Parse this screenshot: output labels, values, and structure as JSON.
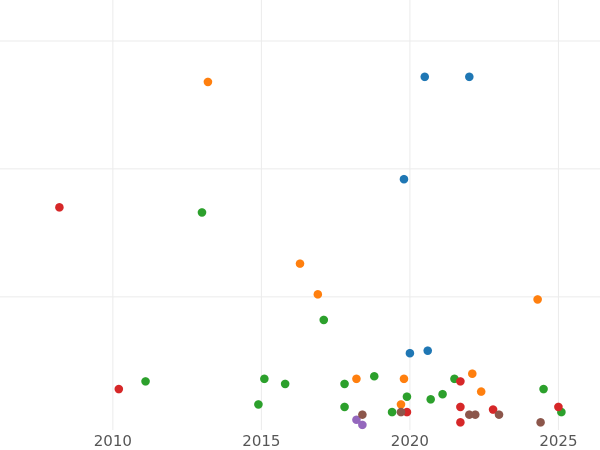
{
  "chart_data": {
    "type": "scatter",
    "title": "",
    "xlabel": "",
    "ylabel": "",
    "xlim": [
      2006.2,
      2026.4
    ],
    "ylim": [
      -0.2,
      16.6
    ],
    "grid": true,
    "legend": "none",
    "x_ticks": [
      2010,
      2015,
      2020,
      2025
    ],
    "x_tick_labels": [
      "2010",
      "2015",
      "2020",
      "2025"
    ],
    "y_grid_values": [
      5,
      10,
      15
    ],
    "series": [
      {
        "color": "#1f77b4",
        "points": [
          {
            "x": 2020.5,
            "y": 13.6
          },
          {
            "x": 2022.0,
            "y": 13.6
          },
          {
            "x": 2019.8,
            "y": 9.6
          },
          {
            "x": 2020.0,
            "y": 2.8
          },
          {
            "x": 2020.6,
            "y": 2.9
          }
        ]
      },
      {
        "color": "#ff7f0e",
        "points": [
          {
            "x": 2013.2,
            "y": 13.4
          },
          {
            "x": 2016.3,
            "y": 6.3
          },
          {
            "x": 2016.9,
            "y": 5.1
          },
          {
            "x": 2024.3,
            "y": 4.9
          },
          {
            "x": 2018.2,
            "y": 1.8
          },
          {
            "x": 2019.8,
            "y": 1.8
          },
          {
            "x": 2022.1,
            "y": 2.0
          },
          {
            "x": 2022.4,
            "y": 1.3
          },
          {
            "x": 2019.7,
            "y": 0.8
          }
        ]
      },
      {
        "color": "#2ca02c",
        "points": [
          {
            "x": 2013.0,
            "y": 8.3
          },
          {
            "x": 2017.1,
            "y": 4.1
          },
          {
            "x": 2011.1,
            "y": 1.7
          },
          {
            "x": 2015.1,
            "y": 1.8
          },
          {
            "x": 2015.8,
            "y": 1.6
          },
          {
            "x": 2014.9,
            "y": 0.8
          },
          {
            "x": 2017.8,
            "y": 1.6
          },
          {
            "x": 2018.8,
            "y": 1.9
          },
          {
            "x": 2017.8,
            "y": 0.7
          },
          {
            "x": 2019.4,
            "y": 0.5
          },
          {
            "x": 2019.9,
            "y": 1.1
          },
          {
            "x": 2020.7,
            "y": 1.0
          },
          {
            "x": 2021.1,
            "y": 1.2
          },
          {
            "x": 2021.5,
            "y": 1.8
          },
          {
            "x": 2024.5,
            "y": 1.4
          },
          {
            "x": 2025.1,
            "y": 0.5
          }
        ]
      },
      {
        "color": "#d62728",
        "points": [
          {
            "x": 2008.2,
            "y": 8.5
          },
          {
            "x": 2010.2,
            "y": 1.4
          },
          {
            "x": 2021.7,
            "y": 1.7
          },
          {
            "x": 2021.7,
            "y": 0.7
          },
          {
            "x": 2019.9,
            "y": 0.5
          },
          {
            "x": 2021.7,
            "y": 0.1
          },
          {
            "x": 2022.8,
            "y": 0.6
          },
          {
            "x": 2025.0,
            "y": 0.7
          }
        ]
      },
      {
        "color": "#9467bd",
        "points": [
          {
            "x": 2018.2,
            "y": 0.2
          },
          {
            "x": 2018.4,
            "y": 0.0
          }
        ]
      },
      {
        "color": "#8c564b",
        "points": [
          {
            "x": 2018.4,
            "y": 0.4
          },
          {
            "x": 2019.7,
            "y": 0.5
          },
          {
            "x": 2022.0,
            "y": 0.4
          },
          {
            "x": 2022.2,
            "y": 0.4
          },
          {
            "x": 2023.0,
            "y": 0.4
          },
          {
            "x": 2024.4,
            "y": 0.1
          }
        ]
      }
    ]
  }
}
